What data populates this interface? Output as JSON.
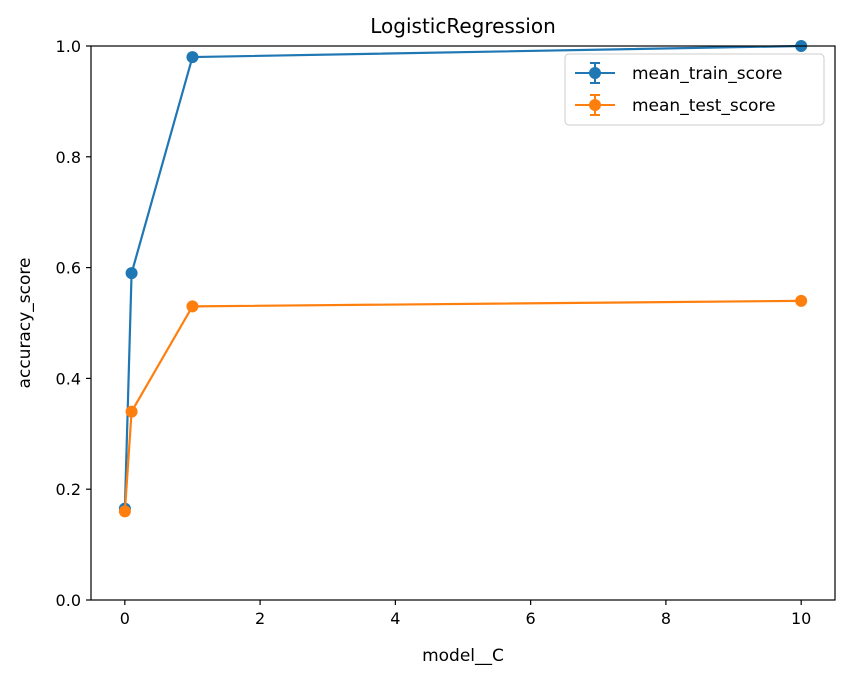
{
  "chart_data": {
    "type": "line",
    "title": "LogisticRegression",
    "xlabel": "model__C",
    "ylabel": "accuracy_score",
    "xlim": [
      -0.5,
      10.5
    ],
    "ylim": [
      0.0,
      1.0
    ],
    "xticks": [
      0,
      2,
      4,
      6,
      8,
      10
    ],
    "yticks": [
      0.0,
      0.2,
      0.4,
      0.6,
      0.8,
      1.0
    ],
    "xtick_labels": [
      "0",
      "2",
      "4",
      "6",
      "8",
      "10"
    ],
    "ytick_labels": [
      "0.0",
      "0.2",
      "0.4",
      "0.6",
      "0.8",
      "1.0"
    ],
    "grid": false,
    "legend_position": "top-right",
    "x": [
      0.001,
      0.1,
      1,
      10
    ],
    "series": [
      {
        "name": "mean_train_score",
        "color": "#1f77b4",
        "values": [
          0.165,
          0.59,
          0.98,
          1.0
        ]
      },
      {
        "name": "mean_test_score",
        "color": "#ff7f0e",
        "values": [
          0.16,
          0.34,
          0.53,
          0.54
        ]
      }
    ]
  }
}
